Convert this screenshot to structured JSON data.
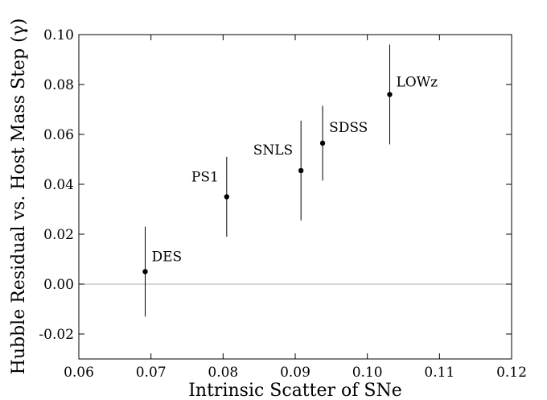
{
  "chart_data": {
    "type": "scatter",
    "title": "",
    "xlabel": "Intrinsic Scatter of SNe",
    "ylabel": "Hubble Residual vs. Host Mass Step (γ)",
    "xlim": [
      0.06,
      0.12
    ],
    "ylim": [
      -0.03,
      0.1
    ],
    "xticks": [
      "0.06",
      "0.07",
      "0.08",
      "0.09",
      "0.10",
      "0.11",
      "0.12"
    ],
    "yticks": [
      "-0.02",
      "0.00",
      "0.02",
      "0.04",
      "0.06",
      "0.08",
      "0.10"
    ],
    "xtick_values": [
      0.06,
      0.07,
      0.08,
      0.09,
      0.1,
      0.11,
      0.12
    ],
    "ytick_values": [
      -0.02,
      0.0,
      0.02,
      0.04,
      0.06,
      0.08,
      0.1
    ],
    "reference_line_y": 0.0,
    "grid": false,
    "points": [
      {
        "label": "DES",
        "x": 0.0692,
        "y": 0.005,
        "err_low": 0.018,
        "err_high": 0.018
      },
      {
        "label": "PS1",
        "x": 0.0805,
        "y": 0.035,
        "err_low": 0.016,
        "err_high": 0.016
      },
      {
        "label": "SNLS",
        "x": 0.0908,
        "y": 0.0455,
        "err_low": 0.02,
        "err_high": 0.02
      },
      {
        "label": "SDSS",
        "x": 0.0938,
        "y": 0.0565,
        "err_low": 0.015,
        "err_high": 0.015
      },
      {
        "label": "LOWz",
        "x": 0.1031,
        "y": 0.076,
        "err_low": 0.02,
        "err_high": 0.02
      }
    ]
  }
}
